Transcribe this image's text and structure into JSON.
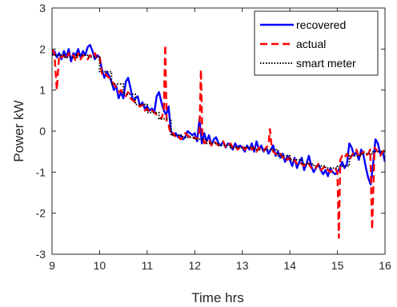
{
  "chart_data": {
    "type": "line",
    "xlabel": "Time hrs",
    "ylabel": "Power kW",
    "xlim": [
      9,
      16
    ],
    "ylim": [
      -3,
      3
    ],
    "xticks": [
      "9",
      "10",
      "11",
      "12",
      "13",
      "14",
      "15",
      "16"
    ],
    "yticks": [
      "3",
      "2",
      "1",
      "0",
      "-1",
      "-2",
      "-3"
    ],
    "grid": false,
    "legend_position": "top-right",
    "series": [
      {
        "name": "recovered",
        "color": "#0000ff",
        "style": "solid",
        "x": [
          9.0,
          9.05,
          9.1,
          9.15,
          9.2,
          9.25,
          9.3,
          9.35,
          9.4,
          9.45,
          9.5,
          9.55,
          9.6,
          9.65,
          9.7,
          9.75,
          9.8,
          9.85,
          9.9,
          9.95,
          10.0,
          10.05,
          10.1,
          10.15,
          10.2,
          10.25,
          10.3,
          10.35,
          10.4,
          10.45,
          10.5,
          10.55,
          10.6,
          10.65,
          10.7,
          10.75,
          10.8,
          10.85,
          10.9,
          10.95,
          11.0,
          11.05,
          11.1,
          11.15,
          11.2,
          11.25,
          11.3,
          11.35,
          11.4,
          11.45,
          11.5,
          11.55,
          11.6,
          11.65,
          11.7,
          11.75,
          11.8,
          11.85,
          11.9,
          11.95,
          12.0,
          12.05,
          12.1,
          12.15,
          12.2,
          12.25,
          12.3,
          12.35,
          12.4,
          12.45,
          12.5,
          12.55,
          12.6,
          12.65,
          12.7,
          12.75,
          12.8,
          12.85,
          12.9,
          12.95,
          13.0,
          13.05,
          13.1,
          13.15,
          13.2,
          13.25,
          13.3,
          13.35,
          13.4,
          13.45,
          13.5,
          13.55,
          13.6,
          13.65,
          13.7,
          13.75,
          13.8,
          13.85,
          13.9,
          13.95,
          14.0,
          14.05,
          14.1,
          14.15,
          14.2,
          14.25,
          14.3,
          14.35,
          14.4,
          14.45,
          14.5,
          14.55,
          14.6,
          14.65,
          14.7,
          14.75,
          14.8,
          14.85,
          14.9,
          14.95,
          15.0,
          15.05,
          15.1,
          15.15,
          15.2,
          15.25,
          15.3,
          15.35,
          15.4,
          15.45,
          15.5,
          15.55,
          15.6,
          15.65,
          15.7,
          15.75,
          15.8,
          15.85,
          15.9,
          15.95,
          16.0
        ],
        "y": [
          1.85,
          1.95,
          1.8,
          1.9,
          1.75,
          1.95,
          1.8,
          2.0,
          1.7,
          1.9,
          1.85,
          2.0,
          1.8,
          1.95,
          1.85,
          2.05,
          2.1,
          1.95,
          1.75,
          1.85,
          1.8,
          1.5,
          1.3,
          1.45,
          1.35,
          1.2,
          1.0,
          1.1,
          0.8,
          0.95,
          0.8,
          1.2,
          1.3,
          1.05,
          0.75,
          0.8,
          0.85,
          0.6,
          0.7,
          0.55,
          0.6,
          0.5,
          0.55,
          0.45,
          0.85,
          0.95,
          0.7,
          0.5,
          0.4,
          0.6,
          0.0,
          -0.1,
          -0.05,
          -0.15,
          -0.1,
          -0.2,
          -0.15,
          0.0,
          -0.05,
          -0.1,
          -0.05,
          -0.25,
          0.3,
          -0.3,
          -0.05,
          -0.25,
          -0.1,
          -0.35,
          -0.2,
          -0.15,
          -0.3,
          -0.35,
          -0.25,
          -0.4,
          -0.3,
          -0.35,
          -0.45,
          -0.3,
          -0.4,
          -0.35,
          -0.4,
          -0.5,
          -0.35,
          -0.45,
          -0.3,
          -0.5,
          -0.25,
          -0.45,
          -0.35,
          -0.5,
          -0.4,
          -0.55,
          -0.45,
          -0.35,
          -0.6,
          -0.5,
          -0.65,
          -0.55,
          -0.75,
          -0.6,
          -0.7,
          -0.85,
          -0.65,
          -0.9,
          -0.75,
          -0.65,
          -0.95,
          -0.8,
          -0.6,
          -0.85,
          -1.0,
          -0.9,
          -0.8,
          -0.95,
          -1.05,
          -0.95,
          -1.1,
          -0.9,
          -1.0,
          -1.05,
          -1.0,
          -0.9,
          -0.75,
          -0.9,
          -0.8,
          -0.3,
          -0.4,
          -0.6,
          -0.5,
          -0.7,
          -0.45,
          -0.6,
          -0.9,
          -1.15,
          -1.3,
          -0.8,
          -0.2,
          -0.3,
          -0.55,
          -0.5,
          -0.75
        ]
      },
      {
        "name": "actual",
        "color": "#ff0000",
        "style": "dashed",
        "x": [
          9.0,
          9.05,
          9.1,
          9.15,
          9.2,
          9.25,
          9.3,
          9.35,
          9.4,
          9.45,
          9.5,
          9.55,
          9.6,
          9.65,
          9.7,
          9.75,
          9.8,
          9.85,
          9.9,
          9.95,
          10.0,
          10.05,
          10.1,
          10.15,
          10.2,
          10.25,
          10.3,
          10.35,
          10.4,
          10.45,
          10.5,
          10.55,
          10.6,
          10.65,
          10.7,
          10.75,
          10.8,
          10.85,
          10.9,
          10.95,
          11.0,
          11.05,
          11.1,
          11.15,
          11.2,
          11.25,
          11.3,
          11.35,
          11.38,
          11.41,
          11.45,
          11.5,
          11.55,
          11.6,
          11.65,
          11.7,
          11.75,
          11.8,
          11.85,
          11.9,
          11.95,
          12.0,
          12.05,
          12.1,
          12.13,
          12.16,
          12.2,
          12.25,
          12.3,
          12.35,
          12.4,
          12.45,
          12.5,
          12.55,
          12.6,
          12.65,
          12.7,
          12.75,
          12.8,
          12.85,
          12.9,
          12.95,
          13.0,
          13.05,
          13.1,
          13.15,
          13.2,
          13.25,
          13.3,
          13.35,
          13.4,
          13.45,
          13.5,
          13.55,
          13.58,
          13.62,
          13.65,
          13.7,
          13.75,
          13.8,
          13.85,
          13.9,
          13.95,
          14.0,
          14.05,
          14.1,
          14.15,
          14.2,
          14.25,
          14.3,
          14.35,
          14.4,
          14.45,
          14.5,
          14.55,
          14.6,
          14.65,
          14.7,
          14.75,
          14.8,
          14.85,
          14.9,
          14.95,
          15.0,
          15.03,
          15.06,
          15.1,
          15.15,
          15.2,
          15.25,
          15.3,
          15.35,
          15.4,
          15.45,
          15.5,
          15.55,
          15.6,
          15.65,
          15.69,
          15.73,
          15.78,
          15.85,
          15.9,
          15.95,
          16.0
        ],
        "y": [
          2.0,
          1.9,
          1.0,
          1.85,
          1.8,
          1.85,
          1.75,
          1.9,
          1.8,
          1.85,
          1.7,
          1.9,
          1.75,
          1.85,
          1.8,
          1.75,
          1.85,
          1.8,
          1.9,
          1.75,
          1.8,
          1.4,
          1.45,
          1.35,
          1.3,
          1.25,
          1.15,
          1.05,
          0.95,
          1.0,
          0.9,
          0.85,
          0.95,
          0.8,
          0.75,
          0.7,
          0.65,
          0.6,
          0.65,
          0.5,
          0.55,
          0.45,
          0.5,
          0.45,
          0.4,
          0.35,
          0.3,
          0.5,
          2.1,
          0.2,
          0.15,
          -0.1,
          -0.05,
          -0.15,
          -0.1,
          -0.2,
          -0.15,
          -0.05,
          -0.1,
          -0.15,
          -0.2,
          -0.15,
          -0.2,
          0.0,
          1.5,
          -0.1,
          -0.3,
          -0.25,
          -0.2,
          -0.35,
          -0.25,
          -0.3,
          -0.35,
          -0.3,
          -0.25,
          -0.4,
          -0.35,
          -0.3,
          -0.4,
          -0.35,
          -0.45,
          -0.4,
          -0.35,
          -0.45,
          -0.4,
          -0.35,
          -0.45,
          -0.4,
          -0.5,
          -0.4,
          -0.45,
          -0.5,
          -0.4,
          -0.35,
          0.05,
          -0.4,
          -0.5,
          -0.55,
          -0.6,
          -0.55,
          -0.65,
          -0.6,
          -0.7,
          -0.65,
          -0.75,
          -0.7,
          -0.8,
          -0.75,
          -0.8,
          -0.85,
          -0.75,
          -0.8,
          -0.9,
          -0.85,
          -0.9,
          -0.8,
          -0.95,
          -0.9,
          -0.85,
          -0.95,
          -1.0,
          -0.95,
          -0.9,
          -1.0,
          -2.6,
          -0.7,
          -0.6,
          -0.65,
          -0.55,
          -0.7,
          -0.6,
          -0.5,
          -0.45,
          -0.65,
          -0.55,
          -0.5,
          -0.6,
          -0.55,
          -0.45,
          -2.4,
          -0.4,
          -0.5,
          -0.6,
          -0.5,
          -0.45
        ]
      },
      {
        "name": "smart meter",
        "color": "#000000",
        "style": "dotted",
        "x": [
          9.0,
          9.25,
          9.25,
          9.5,
          9.5,
          9.75,
          9.75,
          10.0,
          10.0,
          10.25,
          10.25,
          10.5,
          10.5,
          10.75,
          10.75,
          11.0,
          11.0,
          11.25,
          11.25,
          11.5,
          11.5,
          11.75,
          11.75,
          12.0,
          12.0,
          12.25,
          12.25,
          12.5,
          12.5,
          12.75,
          12.75,
          13.0,
          13.0,
          13.25,
          13.25,
          13.5,
          13.5,
          13.75,
          13.75,
          14.0,
          14.0,
          14.25,
          14.25,
          14.5,
          14.5,
          14.75,
          14.75,
          15.0,
          15.0,
          15.25,
          15.25,
          15.5,
          15.5,
          15.75,
          15.75,
          16.0
        ],
        "y": [
          1.85,
          1.85,
          1.8,
          1.8,
          1.85,
          1.85,
          1.8,
          1.8,
          1.45,
          1.45,
          1.15,
          1.15,
          0.9,
          0.9,
          0.65,
          0.65,
          0.45,
          0.45,
          0.3,
          0.3,
          -0.1,
          -0.1,
          -0.15,
          -0.15,
          -0.2,
          -0.2,
          -0.3,
          -0.3,
          -0.35,
          -0.35,
          -0.4,
          -0.4,
          -0.4,
          -0.4,
          -0.45,
          -0.45,
          -0.45,
          -0.45,
          -0.6,
          -0.6,
          -0.7,
          -0.7,
          -0.8,
          -0.8,
          -0.85,
          -0.85,
          -0.9,
          -0.9,
          -0.85,
          -0.85,
          -0.6,
          -0.6,
          -0.55,
          -0.55,
          -0.5,
          -0.5
        ]
      }
    ]
  }
}
